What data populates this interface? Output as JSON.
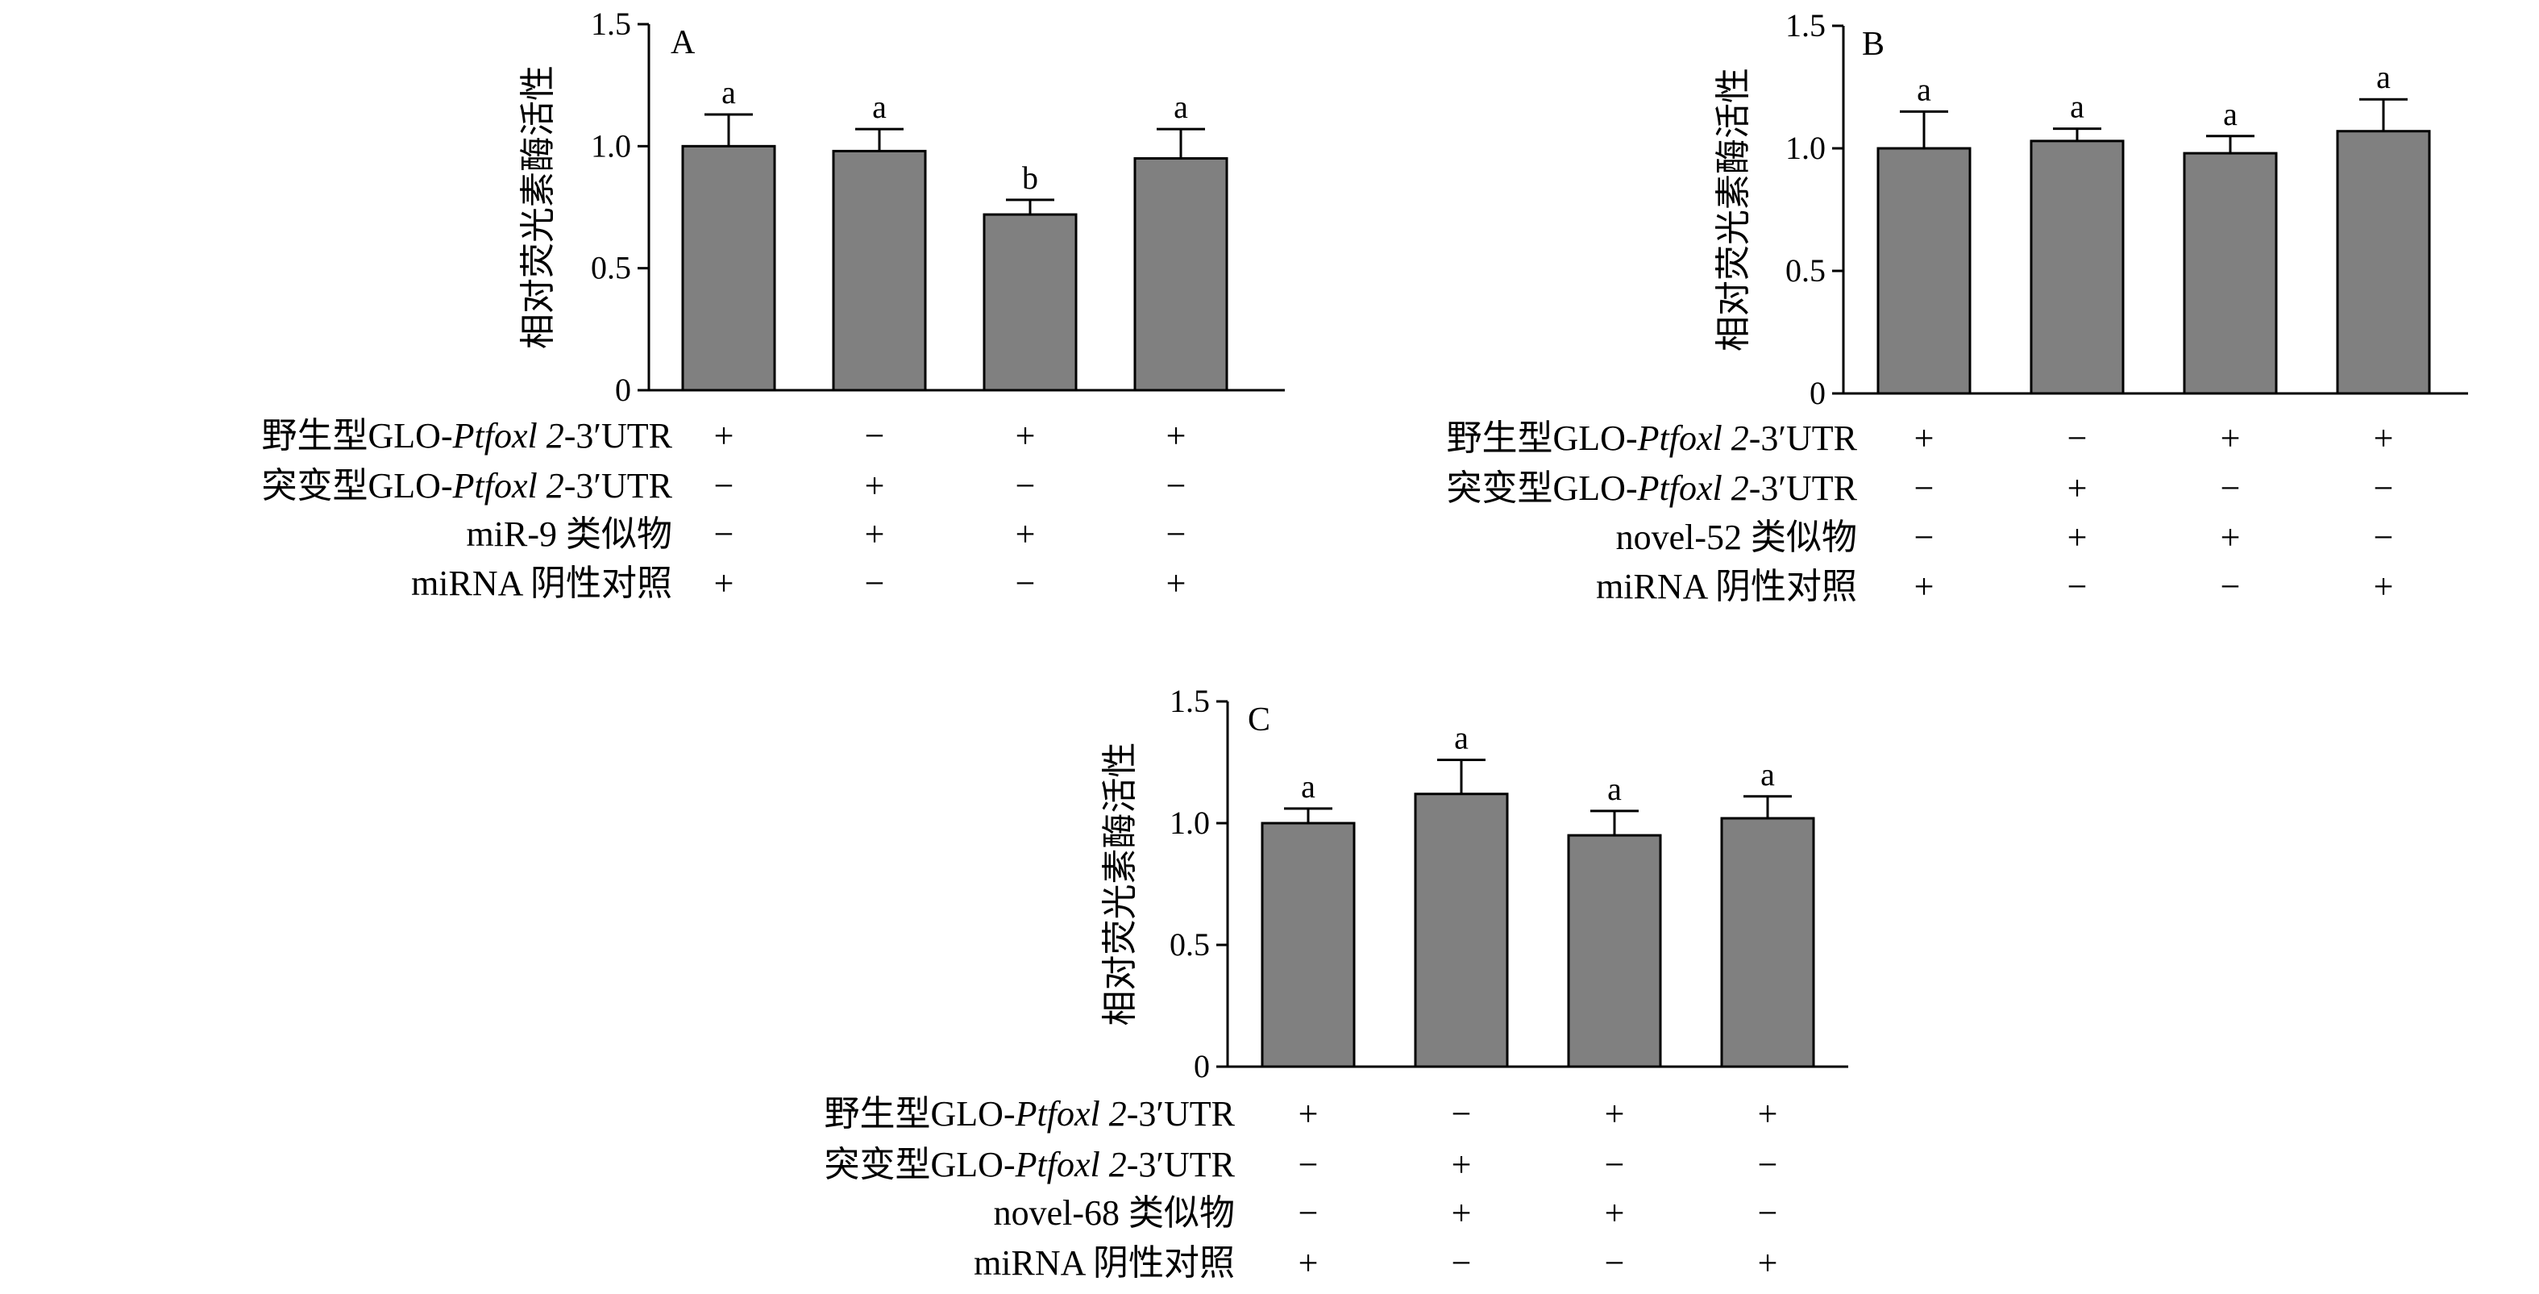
{
  "chart_data": [
    {
      "panel": "A",
      "type": "bar",
      "ylabel": "相对荧光素酶活性",
      "ylim": [
        0,
        1.5
      ],
      "yticks": [
        "0",
        "0.5",
        "1.0",
        "1.5"
      ],
      "values": [
        1.0,
        0.98,
        0.72,
        0.95
      ],
      "errors": [
        0.13,
        0.09,
        0.06,
        0.12
      ],
      "letters": [
        "a",
        "a",
        "b",
        "a"
      ],
      "conditions": [
        {
          "label": "野生型GLO-",
          "italic": "Ptfoxl 2",
          "suffix": "-3′UTR",
          "signs": [
            "+",
            "−",
            "+",
            "+"
          ]
        },
        {
          "label": "突变型GLO-",
          "italic": "Ptfoxl 2",
          "suffix": "-3′UTR",
          "signs": [
            "−",
            "+",
            "−",
            "−"
          ]
        },
        {
          "label": "miR-9 类似物",
          "italic": "",
          "suffix": "",
          "signs": [
            "−",
            "+",
            "+",
            "−"
          ]
        },
        {
          "label": "miRNA 阴性对照",
          "italic": "",
          "suffix": "",
          "signs": [
            "+",
            "−",
            "−",
            "+"
          ]
        }
      ]
    },
    {
      "panel": "B",
      "type": "bar",
      "ylabel": "相对荧光素酶活性",
      "ylim": [
        0,
        1.5
      ],
      "yticks": [
        "0",
        "0.5",
        "1.0",
        "1.5"
      ],
      "values": [
        1.0,
        1.03,
        0.98,
        1.07
      ],
      "errors": [
        0.15,
        0.05,
        0.07,
        0.13
      ],
      "letters": [
        "a",
        "a",
        "a",
        "a"
      ],
      "conditions": [
        {
          "label": "野生型GLO-",
          "italic": "Ptfoxl 2",
          "suffix": "-3′UTR",
          "signs": [
            "+",
            "−",
            "+",
            "+"
          ]
        },
        {
          "label": "突变型GLO-",
          "italic": "Ptfoxl 2",
          "suffix": "-3′UTR",
          "signs": [
            "−",
            "+",
            "−",
            "−"
          ]
        },
        {
          "label": "novel-52 类似物",
          "italic": "",
          "suffix": "",
          "signs": [
            "−",
            "+",
            "+",
            "−"
          ]
        },
        {
          "label": "miRNA 阴性对照",
          "italic": "",
          "suffix": "",
          "signs": [
            "+",
            "−",
            "−",
            "+"
          ]
        }
      ]
    },
    {
      "panel": "C",
      "type": "bar",
      "ylabel": "相对荧光素酶活性",
      "ylim": [
        0,
        1.5
      ],
      "yticks": [
        "0",
        "0.5",
        "1.0",
        "1.5"
      ],
      "values": [
        1.0,
        1.12,
        0.95,
        1.02
      ],
      "errors": [
        0.06,
        0.14,
        0.1,
        0.09
      ],
      "letters": [
        "a",
        "a",
        "a",
        "a"
      ],
      "conditions": [
        {
          "label": "野生型GLO-",
          "italic": "Ptfoxl 2",
          "suffix": "-3′UTR",
          "signs": [
            "+",
            "−",
            "+",
            "+"
          ]
        },
        {
          "label": "突变型GLO-",
          "italic": "Ptfoxl 2",
          "suffix": "-3′UTR",
          "signs": [
            "−",
            "+",
            "−",
            "−"
          ]
        },
        {
          "label": "novel-68 类似物",
          "italic": "",
          "suffix": "",
          "signs": [
            "−",
            "+",
            "+",
            "−"
          ]
        },
        {
          "label": "miRNA 阴性对照",
          "italic": "",
          "suffix": "",
          "signs": [
            "+",
            "−",
            "−",
            "+"
          ]
        }
      ]
    }
  ],
  "colors": {
    "bar_fill": "#808080",
    "stroke": "#000000"
  }
}
